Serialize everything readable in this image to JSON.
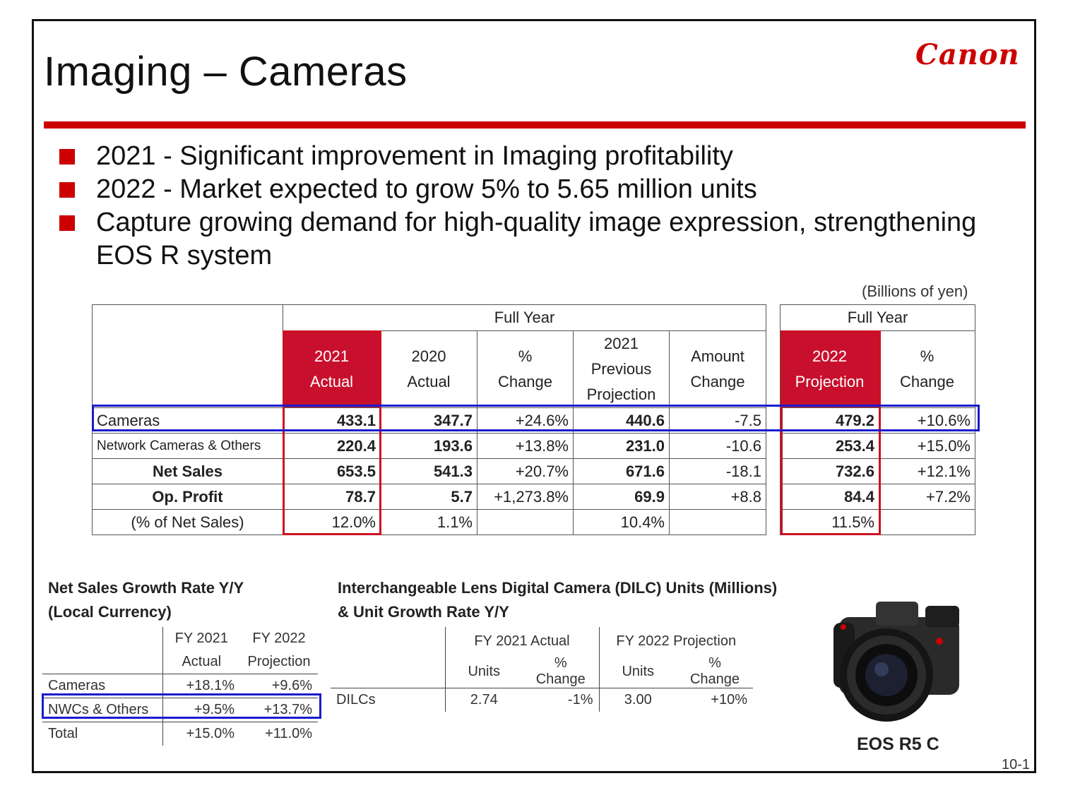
{
  "title": "Imaging – Cameras",
  "logo_text": "Canon",
  "bullets": [
    "2021 - Significant improvement in Imaging profitability",
    "2022 - Market expected to grow 5% to 5.65 million units",
    "Capture growing demand for high-quality image expression, strengthening EOS R system"
  ],
  "units_note": "(Billions of yen)",
  "main_table": {
    "group_left": "Full Year",
    "group_right": "Full Year",
    "columns": [
      {
        "l1": "2021",
        "l2": "Actual"
      },
      {
        "l1": "2020",
        "l2": "Actual"
      },
      {
        "l1": "%",
        "l2": "Change"
      },
      {
        "l1": "2021",
        "l2": "Previous",
        "l3": "Projection"
      },
      {
        "l1": "Amount",
        "l2": "Change"
      },
      {
        "l1": "2022",
        "l2": "Projection"
      },
      {
        "l1": "%",
        "l2": "Change"
      }
    ],
    "rows": [
      {
        "label": "Cameras",
        "values": [
          "433.1",
          "347.7",
          "+24.6%",
          "440.6",
          "-7.5",
          "479.2",
          "+10.6%"
        ]
      },
      {
        "label": "Network Cameras & Others",
        "values": [
          "220.4",
          "193.6",
          "+13.8%",
          "231.0",
          "-10.6",
          "253.4",
          "+15.0%"
        ]
      },
      {
        "label": "Net Sales",
        "values": [
          "653.5",
          "541.3",
          "+20.7%",
          "671.6",
          "-18.1",
          "732.6",
          "+12.1%"
        ]
      },
      {
        "label": "Op. Profit",
        "values": [
          "78.7",
          "5.7",
          "+1,273.8%",
          "69.9",
          "+8.8",
          "84.4",
          "+7.2%"
        ]
      },
      {
        "label": "(% of Net Sales)",
        "values": [
          "12.0%",
          "1.1%",
          "",
          "10.4%",
          "",
          "11.5%",
          ""
        ]
      }
    ]
  },
  "growth_table": {
    "title_line1": "Net Sales Growth Rate Y/Y",
    "title_line2": "(Local Currency)",
    "col1_l1": "FY 2021",
    "col1_l2": "Actual",
    "col2_l1": "FY 2022",
    "col2_l2": "Projection",
    "rows": [
      {
        "label": "Cameras",
        "v1": "+18.1%",
        "v2": "+9.6%"
      },
      {
        "label": "NWCs & Others",
        "v1": "+9.5%",
        "v2": "+13.7%"
      },
      {
        "label": "Total",
        "v1": "+15.0%",
        "v2": "+11.0%"
      }
    ]
  },
  "dilc_table": {
    "title_line1": "Interchangeable Lens Digital Camera (DILC) Units (Millions)",
    "title_line2": "& Unit Growth Rate Y/Y",
    "group1": "FY 2021 Actual",
    "group2": "FY 2022 Projection",
    "sub_units": "Units",
    "sub_change": "% Change",
    "row_label": "DILCs",
    "values": [
      "2.74",
      "-1%",
      "3.00",
      "+10%"
    ]
  },
  "product_caption": "EOS R5 C",
  "page_number": "10-1",
  "colors": {
    "accent_red": "#cc0000",
    "header_red": "#c8102e",
    "highlight_blue": "#1a1acc"
  },
  "icons": [
    "camera-image"
  ]
}
